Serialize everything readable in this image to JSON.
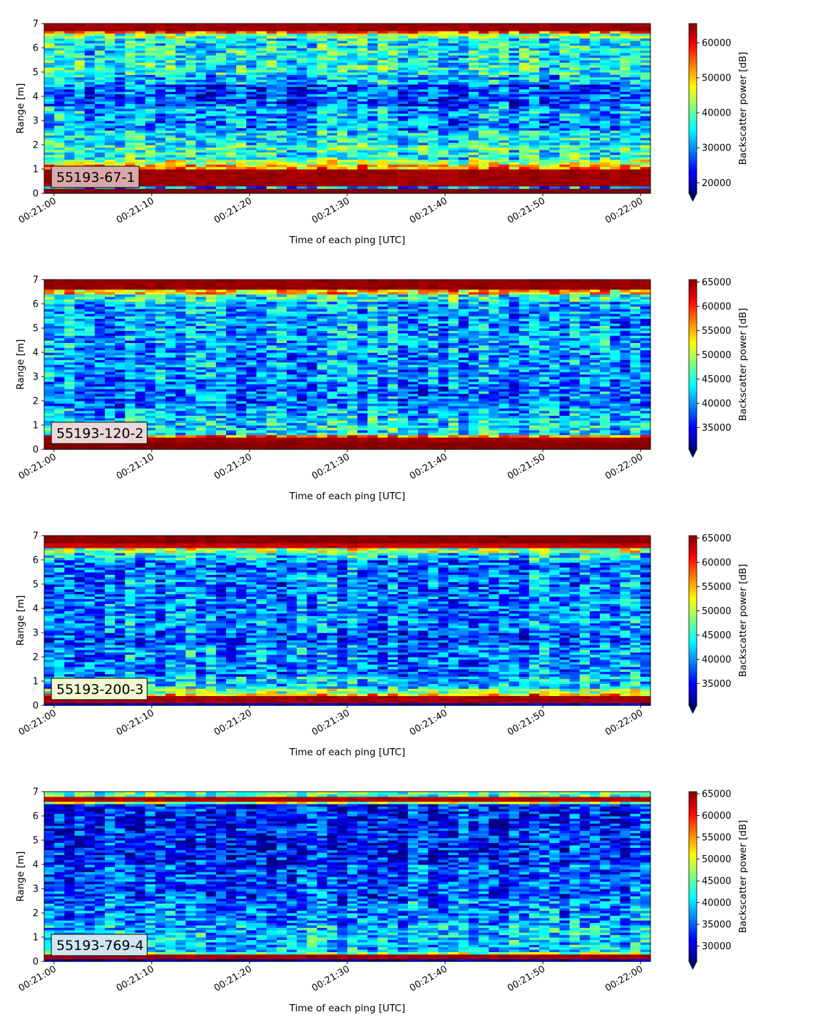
{
  "figure": {
    "xlabel": "Time of each ping [UTC]",
    "ylabel": "Range [m]",
    "colorbar_label": "Backscatter power [dB]"
  },
  "chart_data": [
    {
      "type": "heatmap",
      "label": "55193-67-1",
      "label_box_color": "#d9a8a8",
      "xlabel": "Time of each ping [UTC]",
      "ylabel": "Range [m]",
      "x_ticks": [
        "00:21:00",
        "00:21:10",
        "00:21:20",
        "00:21:30",
        "00:21:40",
        "00:21:50",
        "00:22:00"
      ],
      "x_range_seconds": [
        -1,
        61
      ],
      "ylim": [
        0,
        7
      ],
      "y_ticks": [
        0,
        1,
        2,
        3,
        4,
        5,
        6,
        7
      ],
      "colorbar": {
        "label": "Backscatter power [dB]",
        "vmin": 17000,
        "vmax": 65500,
        "ticks": [
          20000,
          30000,
          40000,
          50000,
          60000
        ],
        "extend": "min",
        "colormap": "jet"
      },
      "profile": [
        [
          0.0,
          0.1,
          1.0
        ],
        [
          0.12,
          0.25,
          1.0
        ],
        [
          0.28,
          1.05,
          0.97
        ],
        [
          1.05,
          1.2,
          0.72
        ],
        [
          1.2,
          1.4,
          0.55
        ],
        [
          1.4,
          1.85,
          0.4
        ],
        [
          1.85,
          2.05,
          0.45
        ],
        [
          2.05,
          2.6,
          0.36
        ],
        [
          2.6,
          3.0,
          0.26
        ],
        [
          3.0,
          3.6,
          0.3
        ],
        [
          3.6,
          4.5,
          0.2
        ],
        [
          4.5,
          4.9,
          0.3
        ],
        [
          4.9,
          5.2,
          0.4
        ],
        [
          5.2,
          6.4,
          0.38
        ],
        [
          6.4,
          6.6,
          0.5
        ],
        [
          6.6,
          6.75,
          0.78
        ],
        [
          6.75,
          7.0,
          0.97
        ]
      ]
    },
    {
      "type": "heatmap",
      "label": "55193-120-2",
      "label_box_color": "#ecd8d8",
      "xlabel": "Time of each ping [UTC]",
      "ylabel": "Range [m]",
      "x_ticks": [
        "00:21:00",
        "00:21:10",
        "00:21:20",
        "00:21:30",
        "00:21:40",
        "00:21:50",
        "00:22:00"
      ],
      "x_range_seconds": [
        -1,
        61
      ],
      "ylim": [
        0,
        7
      ],
      "y_ticks": [
        0,
        1,
        2,
        3,
        4,
        5,
        6,
        7
      ],
      "colorbar": {
        "label": "Backscatter power [dB]",
        "vmin": 30500,
        "vmax": 65500,
        "ticks": [
          35000,
          40000,
          45000,
          50000,
          55000,
          60000,
          65000
        ],
        "extend": "min",
        "colormap": "jet"
      },
      "profile": [
        [
          0.0,
          0.35,
          1.0
        ],
        [
          0.35,
          0.55,
          0.97
        ],
        [
          0.55,
          0.65,
          0.75
        ],
        [
          0.65,
          1.3,
          0.36
        ],
        [
          1.3,
          1.7,
          0.3
        ],
        [
          1.7,
          2.9,
          0.24
        ],
        [
          2.9,
          4.0,
          0.27
        ],
        [
          4.0,
          5.0,
          0.28
        ],
        [
          5.0,
          6.1,
          0.28
        ],
        [
          6.1,
          6.4,
          0.4
        ],
        [
          6.4,
          6.6,
          0.68
        ],
        [
          6.6,
          7.0,
          0.98
        ]
      ]
    },
    {
      "type": "heatmap",
      "label": "55193-200-3",
      "label_box_color": "#f3f7d2",
      "xlabel": "Time of each ping [UTC]",
      "ylabel": "Range [m]",
      "x_ticks": [
        "00:21:00",
        "00:21:10",
        "00:21:20",
        "00:21:30",
        "00:21:40",
        "00:21:50",
        "00:22:00"
      ],
      "x_range_seconds": [
        -1,
        61
      ],
      "ylim": [
        0,
        7
      ],
      "y_ticks": [
        0,
        1,
        2,
        3,
        4,
        5,
        6,
        7
      ],
      "colorbar": {
        "label": "Backscatter power [dB]",
        "vmin": 30500,
        "vmax": 65500,
        "ticks": [
          35000,
          40000,
          45000,
          50000,
          55000,
          60000,
          65000
        ],
        "extend": "min",
        "colormap": "jet"
      },
      "profile": [
        [
          0.0,
          0.15,
          0.08
        ],
        [
          0.15,
          0.4,
          0.97
        ],
        [
          0.4,
          0.55,
          0.72
        ],
        [
          0.55,
          0.75,
          0.52
        ],
        [
          0.75,
          1.2,
          0.34
        ],
        [
          1.2,
          2.0,
          0.25
        ],
        [
          2.0,
          2.5,
          0.27
        ],
        [
          2.5,
          3.0,
          0.2
        ],
        [
          3.0,
          4.0,
          0.26
        ],
        [
          4.0,
          6.0,
          0.25
        ],
        [
          6.0,
          6.3,
          0.36
        ],
        [
          6.3,
          6.55,
          0.55
        ],
        [
          6.55,
          6.75,
          0.93
        ],
        [
          6.75,
          7.0,
          0.99
        ]
      ]
    },
    {
      "type": "heatmap",
      "label": "55193-769-4",
      "label_box_color": "#cfe6f2",
      "xlabel": "Time of each ping [UTC]",
      "ylabel": "Range [m]",
      "x_ticks": [
        "00:21:00",
        "00:21:10",
        "00:21:20",
        "00:21:30",
        "00:21:40",
        "00:21:50",
        "00:22:00"
      ],
      "x_range_seconds": [
        -1,
        61
      ],
      "ylim": [
        0,
        7
      ],
      "y_ticks": [
        0,
        1,
        2,
        3,
        4,
        5,
        6,
        7
      ],
      "colorbar": {
        "label": "Backscatter power [dB]",
        "vmin": 26500,
        "vmax": 65500,
        "ticks": [
          30000,
          35000,
          40000,
          45000,
          50000,
          55000,
          60000,
          65000
        ],
        "extend": "min",
        "colormap": "jet"
      },
      "profile": [
        [
          0.0,
          0.15,
          0.05
        ],
        [
          0.15,
          0.3,
          0.97
        ],
        [
          0.3,
          0.45,
          0.5
        ],
        [
          0.45,
          1.5,
          0.32
        ],
        [
          1.5,
          2.5,
          0.26
        ],
        [
          2.5,
          4.0,
          0.2
        ],
        [
          4.0,
          5.5,
          0.15
        ],
        [
          5.5,
          6.5,
          0.14
        ],
        [
          6.5,
          6.62,
          0.55
        ],
        [
          6.62,
          6.8,
          0.95
        ],
        [
          6.8,
          7.0,
          0.45
        ]
      ]
    }
  ]
}
